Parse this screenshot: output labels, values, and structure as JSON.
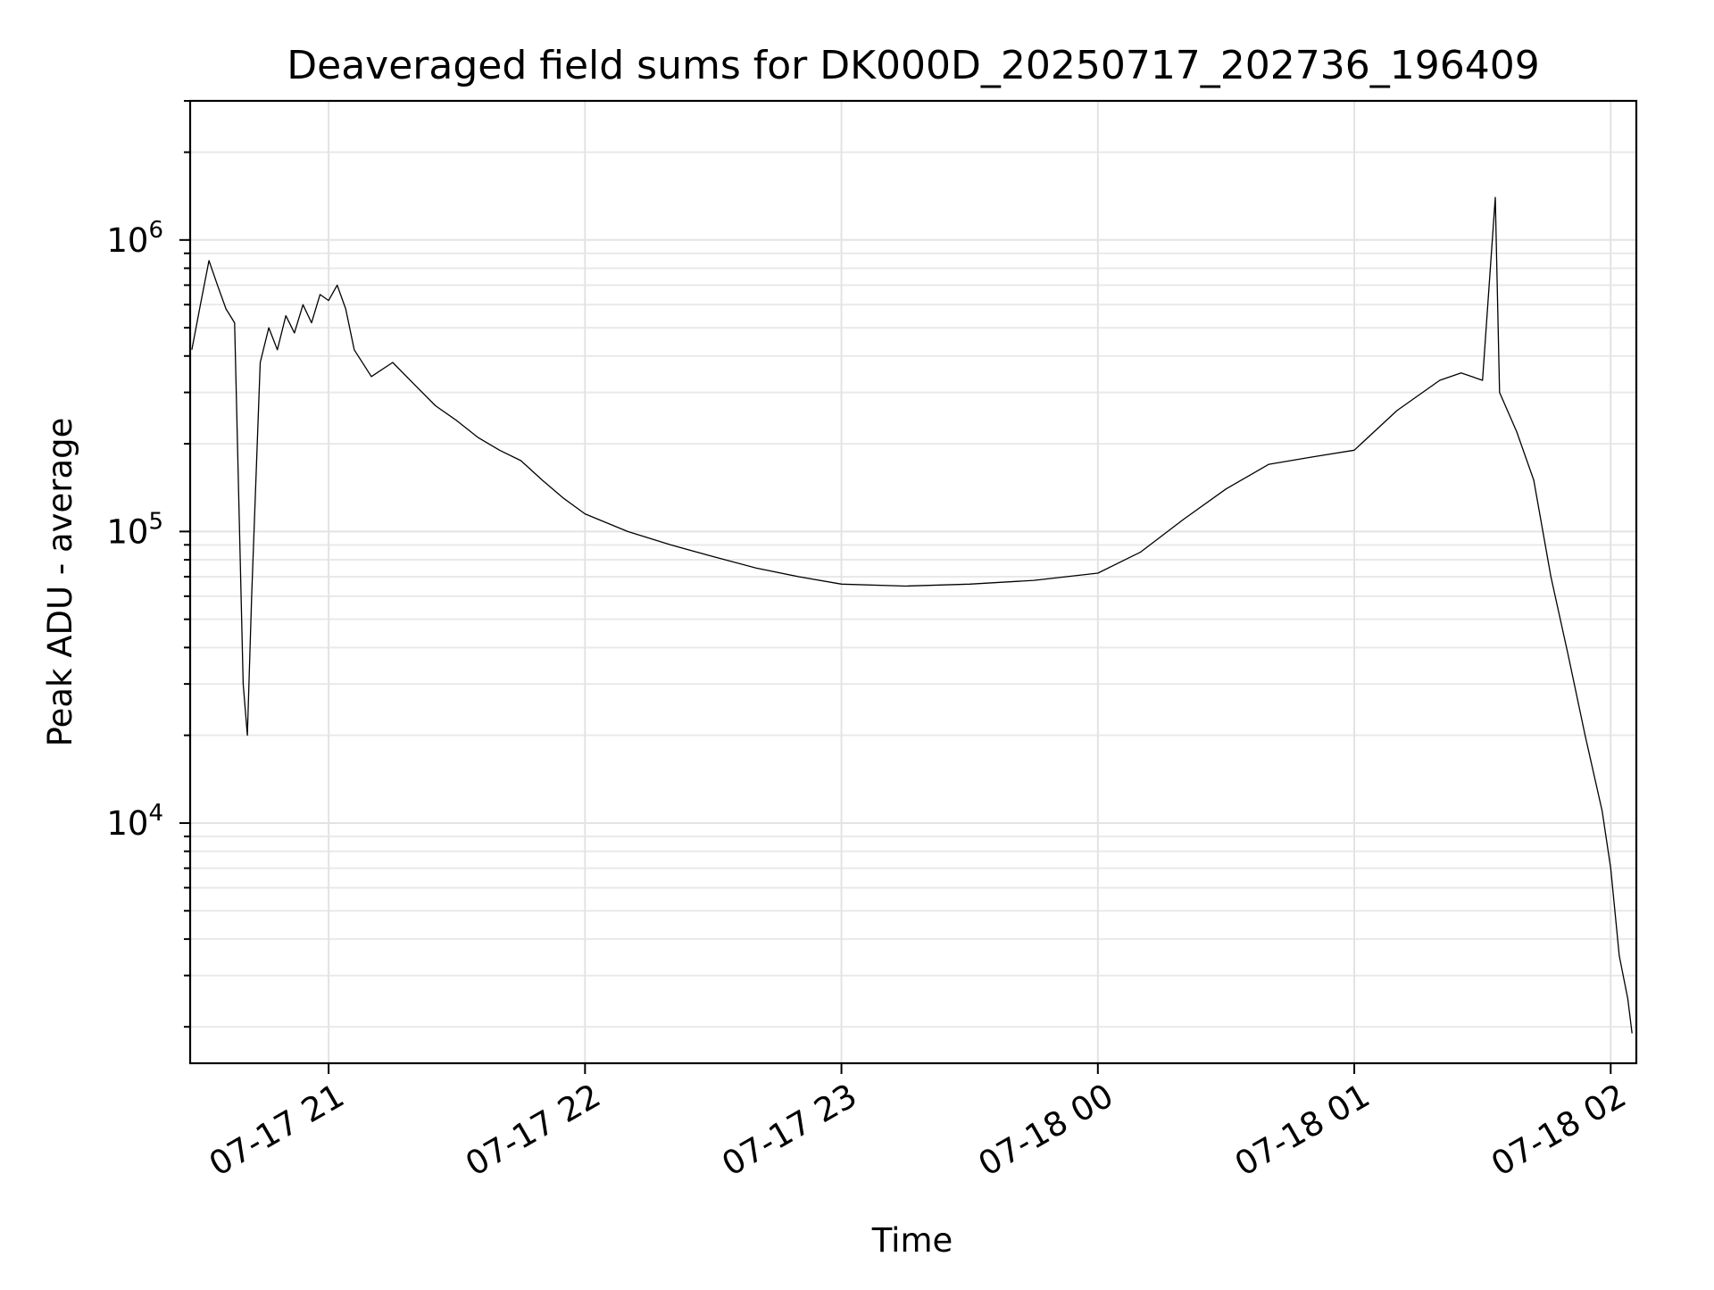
{
  "chart_data": {
    "type": "line",
    "title": "Deaveraged field sums for DK000D_20250717_202736_196409",
    "xlabel": "Time",
    "ylabel": "Peak ADU - average",
    "xscale": "time",
    "yscale": "log",
    "xlim": [
      "2025-07-17 20:27:36",
      "2025-07-18 02:06:00"
    ],
    "ylim": [
      1500,
      3000000
    ],
    "grid": true,
    "legend": "none",
    "x_ticks": [
      {
        "time": "2025-07-17 21:00",
        "label": "07-17 21"
      },
      {
        "time": "2025-07-17 22:00",
        "label": "07-17 22"
      },
      {
        "time": "2025-07-17 23:00",
        "label": "07-17 23"
      },
      {
        "time": "2025-07-18 00:00",
        "label": "07-18 00"
      },
      {
        "time": "2025-07-18 01:00",
        "label": "07-18 01"
      },
      {
        "time": "2025-07-18 02:00",
        "label": "07-18 02"
      }
    ],
    "y_ticks": [
      {
        "value": 10000,
        "base": "10",
        "exp": "4"
      },
      {
        "value": 100000,
        "base": "10",
        "exp": "5"
      },
      {
        "value": 1000000,
        "base": "10",
        "exp": "6"
      }
    ],
    "series": [
      {
        "color": "#000000",
        "points": [
          [
            "2025-07-17 20:28",
            420000
          ],
          [
            "2025-07-17 20:30",
            600000
          ],
          [
            "2025-07-17 20:32",
            850000
          ],
          [
            "2025-07-17 20:34",
            700000
          ],
          [
            "2025-07-17 20:36",
            580000
          ],
          [
            "2025-07-17 20:38",
            520000
          ],
          [
            "2025-07-17 20:40",
            30000
          ],
          [
            "2025-07-17 20:41",
            20000
          ],
          [
            "2025-07-17 20:42",
            60000
          ],
          [
            "2025-07-17 20:44",
            380000
          ],
          [
            "2025-07-17 20:46",
            500000
          ],
          [
            "2025-07-17 20:48",
            420000
          ],
          [
            "2025-07-17 20:50",
            550000
          ],
          [
            "2025-07-17 20:52",
            480000
          ],
          [
            "2025-07-17 20:54",
            600000
          ],
          [
            "2025-07-17 20:56",
            520000
          ],
          [
            "2025-07-17 20:58",
            650000
          ],
          [
            "2025-07-17 21:00",
            620000
          ],
          [
            "2025-07-17 21:02",
            700000
          ],
          [
            "2025-07-17 21:04",
            580000
          ],
          [
            "2025-07-17 21:06",
            420000
          ],
          [
            "2025-07-17 21:10",
            340000
          ],
          [
            "2025-07-17 21:15",
            380000
          ],
          [
            "2025-07-17 21:20",
            320000
          ],
          [
            "2025-07-17 21:25",
            270000
          ],
          [
            "2025-07-17 21:30",
            240000
          ],
          [
            "2025-07-17 21:35",
            210000
          ],
          [
            "2025-07-17 21:40",
            190000
          ],
          [
            "2025-07-17 21:45",
            175000
          ],
          [
            "2025-07-17 21:50",
            150000
          ],
          [
            "2025-07-17 21:55",
            130000
          ],
          [
            "2025-07-17 22:00",
            115000
          ],
          [
            "2025-07-17 22:10",
            100000
          ],
          [
            "2025-07-17 22:20",
            90000
          ],
          [
            "2025-07-17 22:30",
            82000
          ],
          [
            "2025-07-17 22:40",
            75000
          ],
          [
            "2025-07-17 22:50",
            70000
          ],
          [
            "2025-07-17 23:00",
            66000
          ],
          [
            "2025-07-17 23:15",
            65000
          ],
          [
            "2025-07-17 23:30",
            66000
          ],
          [
            "2025-07-17 23:45",
            68000
          ],
          [
            "2025-07-18 00:00",
            72000
          ],
          [
            "2025-07-18 00:10",
            85000
          ],
          [
            "2025-07-18 00:20",
            110000
          ],
          [
            "2025-07-18 00:30",
            140000
          ],
          [
            "2025-07-18 00:40",
            170000
          ],
          [
            "2025-07-18 00:50",
            180000
          ],
          [
            "2025-07-18 01:00",
            190000
          ],
          [
            "2025-07-18 01:10",
            260000
          ],
          [
            "2025-07-18 01:20",
            330000
          ],
          [
            "2025-07-18 01:25",
            350000
          ],
          [
            "2025-07-18 01:30",
            330000
          ],
          [
            "2025-07-18 01:33",
            1400000
          ],
          [
            "2025-07-18 01:34",
            300000
          ],
          [
            "2025-07-18 01:38",
            220000
          ],
          [
            "2025-07-18 01:42",
            150000
          ],
          [
            "2025-07-18 01:46",
            70000
          ],
          [
            "2025-07-18 01:50",
            38000
          ],
          [
            "2025-07-18 01:54",
            20000
          ],
          [
            "2025-07-18 01:58",
            11000
          ],
          [
            "2025-07-18 02:00",
            7000
          ],
          [
            "2025-07-18 02:02",
            3500
          ],
          [
            "2025-07-18 02:04",
            2500
          ],
          [
            "2025-07-18 02:05",
            1900
          ]
        ]
      }
    ]
  }
}
